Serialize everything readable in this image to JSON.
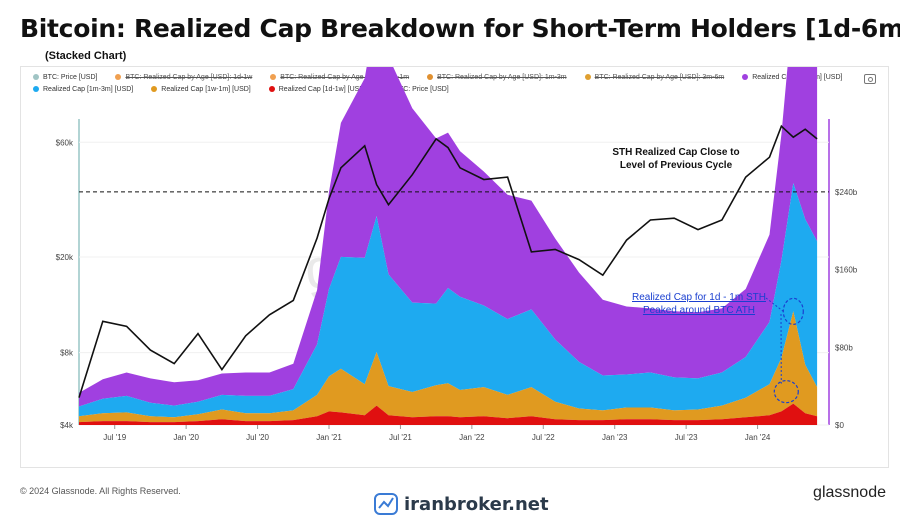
{
  "header": {
    "title": "Bitcoin: Realized Cap Breakdown for Short-Term Holders [1d-6m]",
    "subtitle": "(Stacked Chart)"
  },
  "legend": [
    {
      "label": "BTC: Price [USD]",
      "color": "#a0c4c4",
      "enabled": true
    },
    {
      "label": "BTC: Realized Cap by Age [USD]: 1d-1w",
      "color": "#f0a050",
      "enabled": false
    },
    {
      "label": "BTC: Realized Cap by Age [USD]: 1w-1m",
      "color": "#f0a050",
      "enabled": false
    },
    {
      "label": "BTC: Realized Cap by Age [USD]: 1m-3m",
      "color": "#e09030",
      "enabled": false
    },
    {
      "label": "BTC: Realized Cap by Age [USD]: 3m-6m",
      "color": "#e0a030",
      "enabled": false
    },
    {
      "label": "Realized Cap [3m-6m] [USD]",
      "color": "#a040e0",
      "enabled": true
    },
    {
      "label": "Realized Cap [1m-3m] [USD]",
      "color": "#1eaaf0",
      "enabled": true
    },
    {
      "label": "Realized Cap [1w-1m] [USD]",
      "color": "#e09a20",
      "enabled": true
    },
    {
      "label": "Realized Cap [1d-1w] [USD]",
      "color": "#e01010",
      "enabled": true
    },
    {
      "label": "BTC: Price [USD]",
      "color": "#111111",
      "enabled": true
    }
  ],
  "annotations": {
    "sth_close": [
      "STH Realized Cap Close to",
      "Level of Previous Cycle"
    ],
    "peak": [
      "Realized Cap for 1d - 1m STH",
      "Peaked around BTC ATH"
    ]
  },
  "watermark": "glassnode",
  "footer": {
    "copyright": "© 2024 Glassnode. All Rights Reserved.",
    "brand": "glassnode",
    "site": "iranbroker.net"
  },
  "colors": {
    "price": "#111111",
    "cap_3m_6m": "#a040e0",
    "cap_1m_3m": "#1eaaf0",
    "cap_1w_1m": "#e09a20",
    "cap_1d_1w": "#e01010",
    "annotation_blue": "#1a3fd0"
  },
  "chart_data": {
    "type": "area",
    "stacked": true,
    "x_ticks": [
      "Jul '19",
      "Jan '20",
      "Jul '20",
      "Jan '21",
      "Jul '21",
      "Jan '22",
      "Jul '22",
      "Jan '23",
      "Jul '23",
      "Jan '24"
    ],
    "y_left": {
      "scale": "log",
      "ticks": [
        "$4k",
        "$8k",
        "$20k",
        "$60k"
      ],
      "range": [
        4000,
        75000
      ]
    },
    "y_right": {
      "scale": "linear",
      "ticks": [
        "$0",
        "$80b",
        "$160b",
        "$240b"
      ],
      "range": [
        0,
        315
      ]
    },
    "reference_line_right": 240,
    "x": [
      "2019-04",
      "2019-06",
      "2019-08",
      "2019-10",
      "2019-12",
      "2020-02",
      "2020-04",
      "2020-06",
      "2020-08",
      "2020-10",
      "2020-12",
      "2021-01",
      "2021-02",
      "2021-04",
      "2021-05",
      "2021-06",
      "2021-08",
      "2021-10",
      "2021-11",
      "2021-12",
      "2022-02",
      "2022-04",
      "2022-06",
      "2022-08",
      "2022-10",
      "2022-12",
      "2023-02",
      "2023-04",
      "2023-06",
      "2023-08",
      "2023-10",
      "2023-12",
      "2024-02",
      "2024-03",
      "2024-04",
      "2024-05",
      "2024-06"
    ],
    "series": [
      {
        "name": "Realized Cap [1d-1w] [USD]",
        "axis": "right",
        "values": [
          3,
          4,
          4,
          3,
          3,
          4,
          6,
          4,
          4,
          5,
          9,
          14,
          13,
          10,
          20,
          10,
          8,
          9,
          9,
          8,
          9,
          7,
          9,
          6,
          5,
          5,
          6,
          6,
          5,
          5,
          6,
          8,
          10,
          14,
          22,
          12,
          9
        ]
      },
      {
        "name": "Realized Cap [1w-1m] [USD]",
        "axis": "right",
        "values": [
          6,
          8,
          9,
          6,
          5,
          7,
          10,
          8,
          8,
          10,
          22,
          36,
          45,
          32,
          55,
          30,
          26,
          32,
          34,
          28,
          30,
          24,
          30,
          18,
          12,
          10,
          12,
          12,
          10,
          11,
          14,
          20,
          32,
          55,
          95,
          50,
          30
        ]
      },
      {
        "name": "Realized Cap [1m-3m] [USD]",
        "axis": "right",
        "values": [
          10,
          15,
          17,
          14,
          12,
          13,
          15,
          18,
          18,
          22,
          52,
          90,
          115,
          130,
          140,
          115,
          92,
          84,
          98,
          96,
          84,
          78,
          80,
          64,
          48,
          36,
          34,
          36,
          34,
          32,
          34,
          42,
          64,
          100,
          132,
          150,
          150
        ]
      },
      {
        "name": "Realized Cap [3m-6m] [USD]",
        "axis": "right",
        "values": [
          14,
          20,
          24,
          25,
          24,
          22,
          22,
          24,
          24,
          26,
          56,
          100,
          138,
          185,
          212,
          224,
          200,
          170,
          160,
          150,
          138,
          128,
          112,
          104,
          92,
          78,
          70,
          66,
          68,
          68,
          66,
          70,
          90,
          130,
          185,
          212,
          230
        ]
      },
      {
        "name": "BTC: Price [USD]",
        "axis": "left",
        "values": [
          5200,
          10800,
          10300,
          8200,
          7200,
          9600,
          6800,
          9400,
          11500,
          13200,
          24000,
          35000,
          47000,
          58000,
          40000,
          33000,
          44000,
          62000,
          57000,
          47000,
          42000,
          43000,
          21000,
          21500,
          19500,
          16800,
          23500,
          28500,
          29000,
          26000,
          28500,
          43000,
          52000,
          70000,
          63000,
          68000,
          62000
        ]
      }
    ]
  }
}
